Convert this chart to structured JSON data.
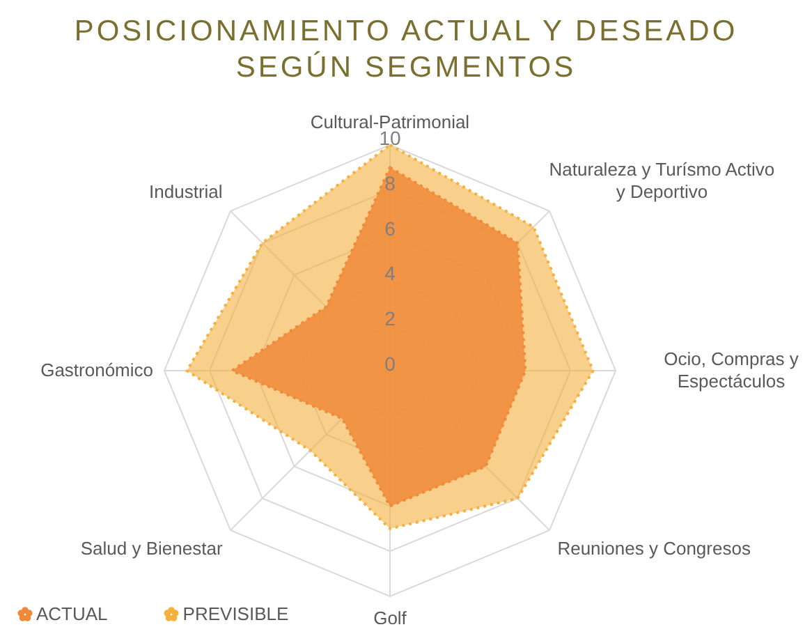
{
  "chart_data": {
    "type": "radar",
    "title": "POSICIONAMIENTO ACTUAL Y DESEADO SEGÚN SEGMENTOS",
    "categories": [
      "Cultural-Patrimonial",
      "Naturaleza y Turísmo Activo y Deportivo",
      "Ocio, Compras y Espectáculos",
      "Reuniones y Congresos",
      "Golf",
      "Salud y Bienestar",
      "Gastronómico",
      "Industrial"
    ],
    "series": [
      {
        "name": "ACTUAL",
        "color": "#f0893a",
        "values": [
          9,
          8,
          6,
          6,
          6,
          3,
          7,
          4
        ]
      },
      {
        "name": "PREVISIBLE",
        "color": "#f5b13d",
        "values": [
          10,
          9,
          9,
          8,
          7,
          5,
          9,
          8
        ]
      }
    ],
    "ylim": [
      0,
      10
    ],
    "yticks": [
      0,
      2,
      4,
      6,
      8,
      10
    ],
    "grid": true,
    "legend": "bottom left",
    "line_style": "dotted",
    "marker": "none"
  }
}
